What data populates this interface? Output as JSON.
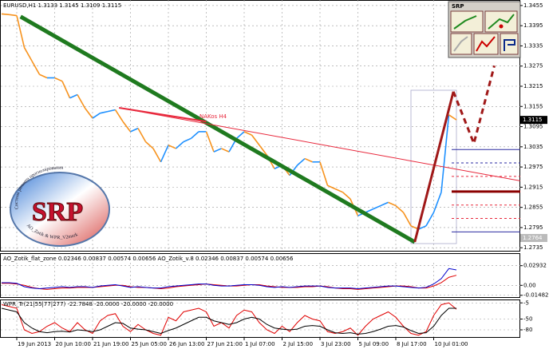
{
  "chart_data": [
    {
      "type": "line",
      "title": "EURUSD,H1  1.3133 1.3145 1.3109 1.3115",
      "annotation": "NAKos H4",
      "categories": [
        null,
        null,
        "19 Jun 2013",
        null,
        null,
        null,
        null,
        "20 Jun 10:00",
        null,
        null,
        null,
        null,
        "21 Jun 19:00",
        null,
        null,
        null,
        null,
        "25 Jun 05:00",
        null,
        null,
        null,
        null,
        "26 Jun 13:00",
        null,
        null,
        null,
        null,
        "27 Jun 21:00",
        null,
        null,
        null,
        null,
        "1 Jul 07:00",
        null,
        null,
        null,
        null,
        "2 Jul 15:00",
        null,
        null,
        null,
        null,
        "3 Jul 23:00",
        null,
        null,
        null,
        null,
        "5 Jul 09:00",
        null,
        null,
        null,
        null,
        "8 Jul 17:00",
        null,
        null,
        null,
        null,
        "10 Jul 01:00",
        null,
        null,
        null
      ],
      "values": [
        1.343,
        1.3428,
        1.3425,
        1.333,
        1.329,
        1.325,
        1.324,
        1.324,
        1.323,
        1.318,
        1.319,
        1.315,
        1.312,
        1.3135,
        1.314,
        1.3145,
        1.311,
        1.308,
        1.309,
        1.305,
        1.303,
        1.299,
        1.304,
        1.303,
        1.305,
        1.306,
        1.308,
        1.308,
        1.302,
        1.303,
        1.302,
        1.306,
        1.308,
        1.307,
        1.304,
        1.301,
        1.297,
        1.298,
        1.295,
        1.298,
        1.3,
        1.299,
        1.299,
        1.292,
        1.291,
        1.29,
        1.288,
        1.283,
        1.284,
        1.285,
        1.286,
        1.287,
        1.286,
        1.284,
        1.28,
        1.279,
        1.28,
        1.284,
        1.29,
        1.313,
        1.3115
      ],
      "up_color": "#1e90ff",
      "down_color": "#f7931e",
      "ylim": [
        1.2726,
        1.3469
      ],
      "yticks": [
        1.3455,
        1.3395,
        1.3335,
        1.3275,
        1.3215,
        1.3155,
        1.3095,
        1.3035,
        1.2975,
        1.2915,
        1.2855,
        1.2795,
        1.2735
      ],
      "grid": true,
      "markers": [
        {
          "value": 1.3115,
          "color": "#000000"
        },
        {
          "value": 1.2764,
          "color": "#bbbbbb"
        }
      ],
      "trendlines": [
        {
          "x": [
            2.5,
            54.5
          ],
          "y": [
            1.3422,
            1.2752
          ],
          "color": "#1f7a1f",
          "width": 5,
          "dashed": false
        },
        {
          "x": [
            15.5,
            68.4
          ],
          "y": [
            1.3151,
            1.2934
          ],
          "color": "#e8283c",
          "width": 1,
          "dashed": false
        },
        {
          "x": [
            15.5,
            27
          ],
          "y": [
            1.3151,
            1.311
          ],
          "color": "#e8283c",
          "width": 2,
          "dashed": false
        },
        {
          "x": [
            54.5,
            59.6
          ],
          "y": [
            1.2752,
            1.3199
          ],
          "color": "#a01818",
          "width": 3,
          "dashed": false
        },
        {
          "x": [
            59.6,
            62.3,
            65
          ],
          "y": [
            1.3199,
            1.3045,
            1.3276
          ],
          "color": "#a01818",
          "width": 3,
          "dashed": true
        }
      ],
      "levels": [
        {
          "value": 1.3027,
          "color": "#2a2aa0",
          "width": 1,
          "dashed": false
        },
        {
          "value": 1.2987,
          "color": "#2a2aa0",
          "width": 1,
          "dashed": true
        },
        {
          "value": 1.2947,
          "color": "#e8283c",
          "width": 1,
          "dashed": true
        },
        {
          "value": 1.2902,
          "color": "#8b0000",
          "width": 3,
          "dashed": false
        },
        {
          "value": 1.2862,
          "color": "#e8283c",
          "width": 1,
          "dashed": true
        },
        {
          "value": 1.2822,
          "color": "#e8283c",
          "width": 1,
          "dashed": true
        },
        {
          "value": 1.2782,
          "color": "#2a2aa0",
          "width": 1,
          "dashed": false
        }
      ]
    },
    {
      "type": "line",
      "title": "AO_Zotik_flat_zone 0.02346 0.00837 0.00574 0.00656  AO_Zotik_v.8 0.02346 0.00837 0.00574 0.00656",
      "ylim": [
        -0.0175,
        0.0325
      ],
      "yticks": [
        0.02932,
        {
          "value": 0,
          "label": "0.00"
        },
        -0.01482
      ],
      "series": [
        {
          "color": "#e00000",
          "values": [
            0.003,
            0.003,
            0.002,
            0.0,
            -0.003,
            -0.005,
            -0.006,
            -0.005,
            -0.004,
            -0.004,
            -0.003,
            -0.003,
            -0.003,
            -0.002,
            -0.001,
            0.0,
            0.0,
            -0.002,
            -0.003,
            -0.003,
            -0.004,
            -0.005,
            -0.004,
            -0.002,
            -0.001,
            0.0,
            0.001,
            0.002,
            0.001,
            0.0,
            -0.001,
            -0.001,
            0.0,
            0.001,
            0.001,
            -0.001,
            -0.002,
            -0.003,
            -0.003,
            -0.003,
            -0.002,
            -0.002,
            -0.001,
            -0.002,
            -0.004,
            -0.005,
            -0.005,
            -0.006,
            -0.005,
            -0.004,
            -0.003,
            -0.002,
            -0.001,
            -0.001,
            -0.002,
            -0.004,
            -0.004,
            -0.001,
            0.004,
            0.012,
            0.015
          ]
        },
        {
          "color": "#0000cc",
          "values": [
            0.004,
            0.004,
            0.003,
            -0.002,
            -0.004,
            -0.005,
            -0.004,
            -0.003,
            -0.002,
            -0.003,
            -0.002,
            -0.002,
            -0.003,
            -0.001,
            0.0,
            0.001,
            -0.001,
            -0.003,
            -0.002,
            -0.003,
            -0.004,
            -0.004,
            -0.002,
            -0.001,
            0.0,
            0.001,
            0.002,
            0.002,
            0.0,
            -0.001,
            -0.001,
            0.0,
            0.001,
            0.001,
            0.0,
            -0.002,
            -0.003,
            -0.002,
            -0.003,
            -0.002,
            -0.001,
            -0.001,
            -0.001,
            -0.003,
            -0.004,
            -0.004,
            -0.004,
            -0.005,
            -0.004,
            -0.003,
            -0.002,
            -0.001,
            -0.001,
            -0.002,
            -0.003,
            -0.004,
            -0.003,
            0.002,
            0.01,
            0.025,
            0.023
          ]
        }
      ]
    },
    {
      "type": "line",
      "title": "WPR_Tr(21|55|77|277) -22.7848 -20.0000 -20.0000 -20.0000",
      "ylim": [
        -100,
        0
      ],
      "yticks": [
        -5,
        -50,
        -80
      ],
      "series": [
        {
          "color": "#e00000",
          "values": [
            -10,
            -15,
            -20,
            -80,
            -90,
            -85,
            -70,
            -60,
            -75,
            -85,
            -60,
            -80,
            -90,
            -55,
            -40,
            -35,
            -70,
            -85,
            -65,
            -80,
            -90,
            -95,
            -45,
            -55,
            -30,
            -25,
            -20,
            -30,
            -70,
            -60,
            -75,
            -40,
            -25,
            -30,
            -60,
            -80,
            -90,
            -70,
            -85,
            -60,
            -40,
            -50,
            -55,
            -85,
            -90,
            -85,
            -75,
            -95,
            -70,
            -50,
            -40,
            -30,
            -45,
            -70,
            -90,
            -95,
            -85,
            -40,
            -10,
            -5,
            -22.7848
          ]
        },
        {
          "color": "#000000",
          "values": [
            -20,
            -25,
            -30,
            -60,
            -75,
            -85,
            -88,
            -85,
            -84,
            -86,
            -80,
            -82,
            -85,
            -80,
            -70,
            -60,
            -62,
            -75,
            -78,
            -80,
            -85,
            -90,
            -82,
            -75,
            -65,
            -55,
            -45,
            -45,
            -55,
            -60,
            -65,
            -60,
            -50,
            -45,
            -50,
            -65,
            -75,
            -78,
            -80,
            -78,
            -70,
            -68,
            -70,
            -80,
            -88,
            -90,
            -88,
            -92,
            -90,
            -85,
            -78,
            -70,
            -68,
            -72,
            -82,
            -90,
            -88,
            -70,
            -40,
            -20,
            -20
          ]
        }
      ]
    }
  ],
  "toolbox": {
    "title": "SRP"
  },
  "logo": {
    "text": "SRP",
    "arc_top": "Система раннего прогнозирования",
    "arc_bottom": "AO_Zotik & WPR_V2mark"
  }
}
